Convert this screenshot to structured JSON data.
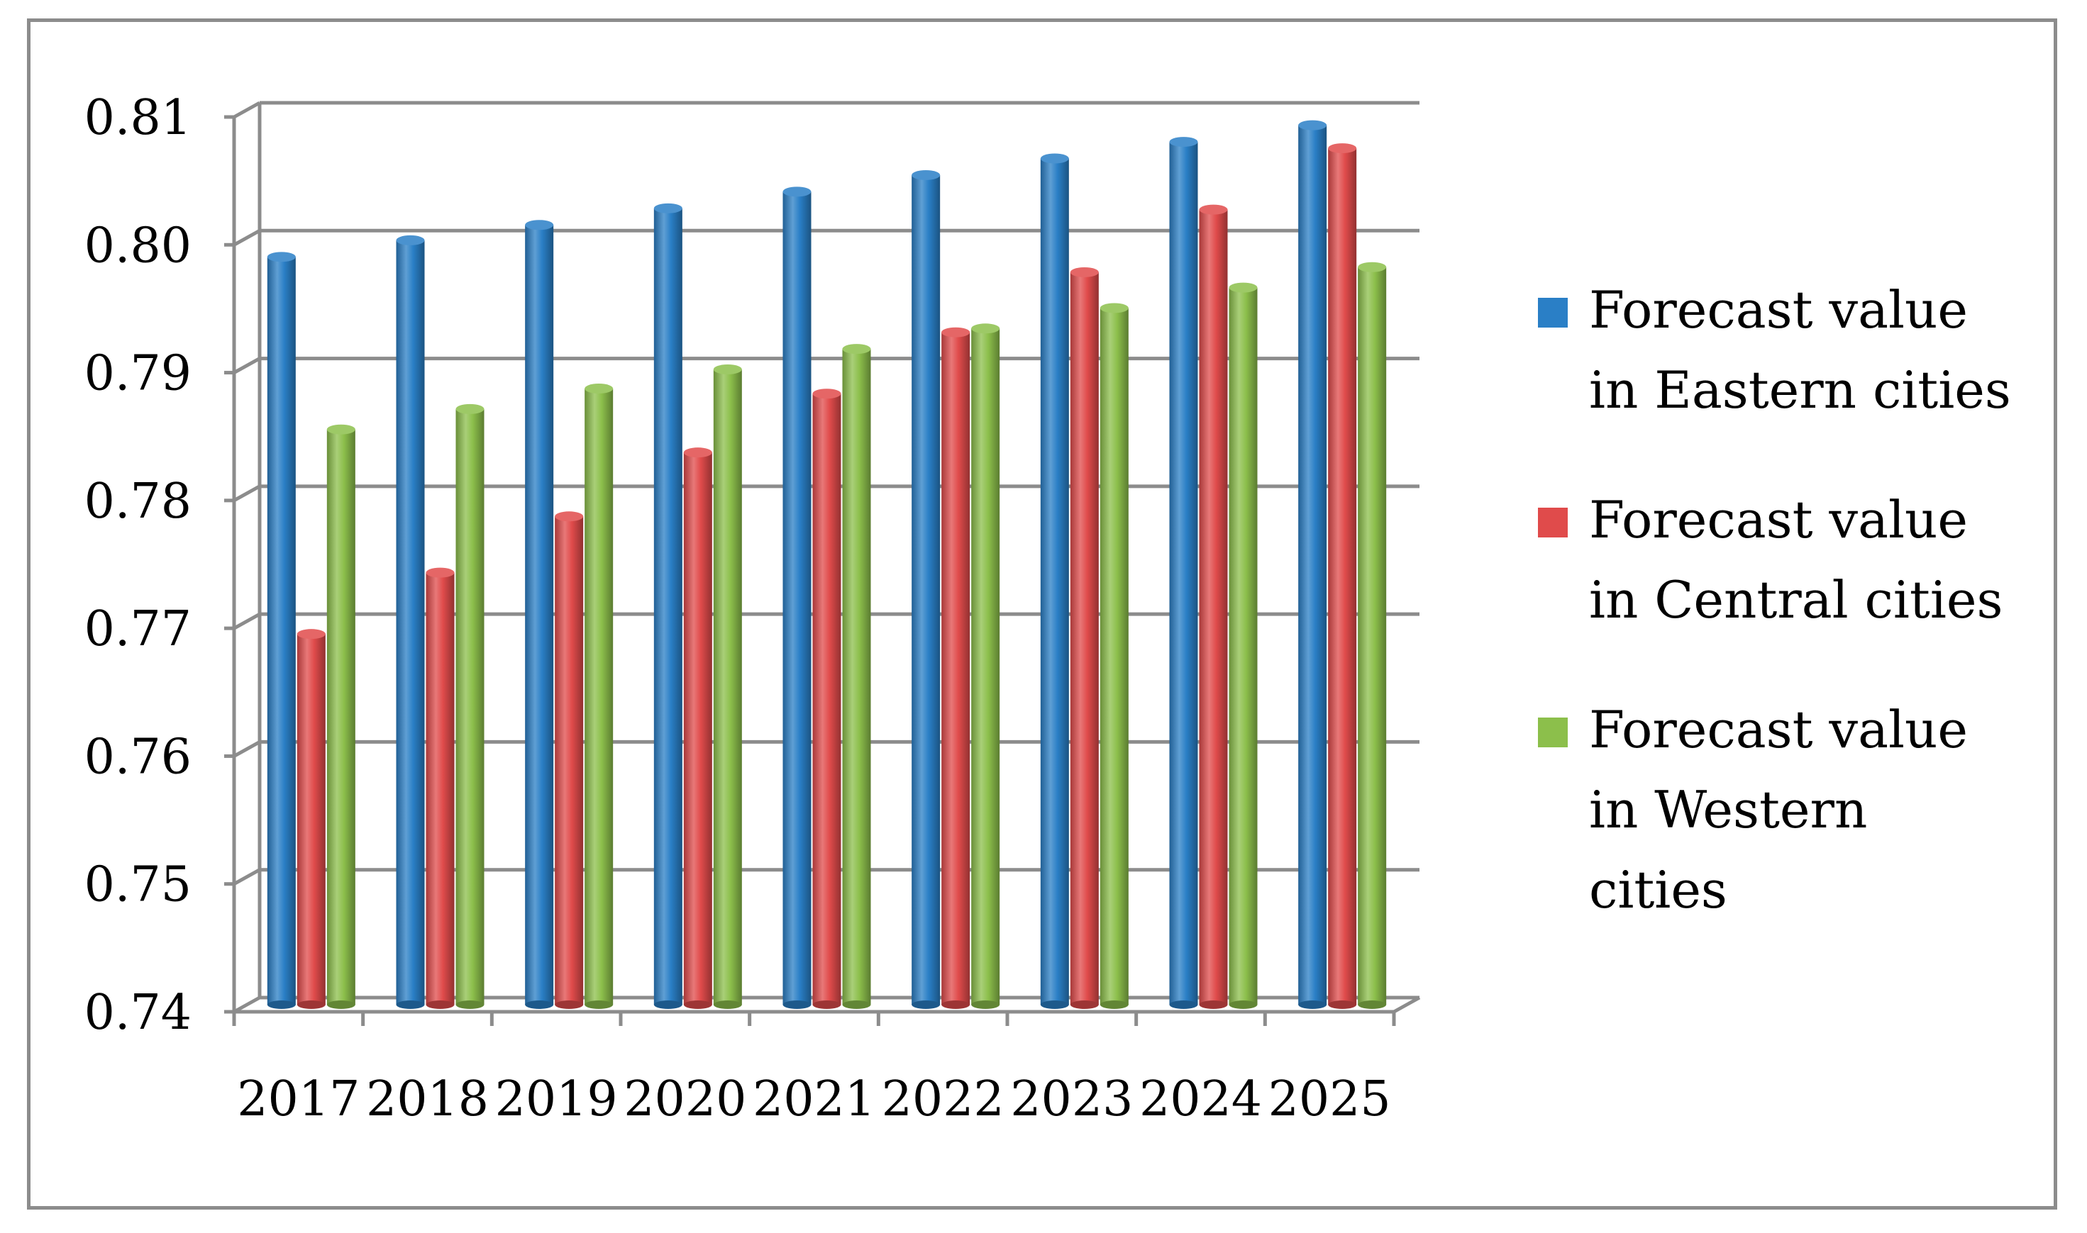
{
  "chart_data": {
    "type": "bar",
    "title": "",
    "xlabel": "",
    "ylabel": "",
    "categories": [
      "2017",
      "2018",
      "2019",
      "2020",
      "2021",
      "2022",
      "2023",
      "2024",
      "2025"
    ],
    "ylim": [
      0.74,
      0.81
    ],
    "yticks": [
      "0.74",
      "0.75",
      "0.76",
      "0.77",
      "0.78",
      "0.79",
      "0.80",
      "0.81"
    ],
    "grid": true,
    "legend_position": "right",
    "series": [
      {
        "name": "Forecast value in Eastern cities",
        "legend_lines": [
          "Forecast value",
          "in Eastern cities"
        ],
        "color": "#2a7fc6",
        "values": [
          0.7985,
          0.7998,
          0.801,
          0.8023,
          0.8036,
          0.8049,
          0.8062,
          0.8075,
          0.8088
        ]
      },
      {
        "name": "Forecast value in Central cities",
        "legend_lines": [
          "Forecast value",
          "in Central cities"
        ],
        "color": "#e04b4b",
        "values": [
          0.769,
          0.7738,
          0.7782,
          0.7832,
          0.7878,
          0.7926,
          0.7973,
          0.8022,
          0.807
        ]
      },
      {
        "name": "Forecast value in Western cities",
        "legend_lines": [
          "Forecast value",
          "in Western",
          "cities"
        ],
        "color": "#8cbf4b",
        "values": [
          0.785,
          0.7866,
          0.7882,
          0.7897,
          0.7913,
          0.7929,
          0.7945,
          0.7961,
          0.7977
        ]
      }
    ]
  }
}
